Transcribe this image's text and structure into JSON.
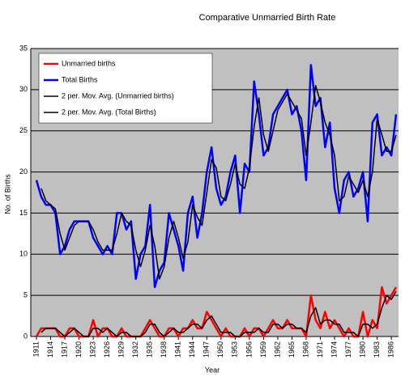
{
  "chart_data": {
    "type": "line",
    "title": "Comparative Unmarried Birth Rate",
    "x_label": "Year",
    "y_label": "No. of Births",
    "x": [
      1911,
      1912,
      1913,
      1914,
      1915,
      1916,
      1917,
      1918,
      1919,
      1920,
      1921,
      1922,
      1923,
      1924,
      1925,
      1926,
      1927,
      1928,
      1929,
      1930,
      1931,
      1932,
      1933,
      1934,
      1935,
      1936,
      1937,
      1938,
      1939,
      1940,
      1941,
      1942,
      1943,
      1944,
      1945,
      1946,
      1947,
      1948,
      1949,
      1950,
      1951,
      1952,
      1953,
      1954,
      1955,
      1956,
      1957,
      1958,
      1959,
      1960,
      1961,
      1962,
      1963,
      1964,
      1965,
      1966,
      1967,
      1968,
      1969,
      1970,
      1971,
      1972,
      1973,
      1974,
      1975,
      1976,
      1977,
      1978,
      1979,
      1980,
      1981,
      1982,
      1983,
      1984,
      1985,
      1986,
      1987
    ],
    "xlim": [
      1911,
      1987
    ],
    "xticks": [
      1911,
      1914,
      1917,
      1920,
      1923,
      1926,
      1929,
      1932,
      1935,
      1938,
      1941,
      1944,
      1947,
      1950,
      1953,
      1956,
      1959,
      1962,
      1965,
      1968,
      1971,
      1974,
      1977,
      1980,
      1983,
      1986
    ],
    "ylim": [
      0,
      35
    ],
    "yticks": [
      0,
      5,
      10,
      15,
      20,
      25,
      30,
      35
    ],
    "grid": true,
    "legend": "upper-left",
    "background": "#c0c0c0",
    "series": [
      {
        "name": "Unmarried births",
        "color": "#ff0000",
        "width": 2.5,
        "values": [
          0,
          1,
          1,
          1,
          1,
          0,
          0,
          1,
          1,
          0,
          0,
          0,
          2,
          0,
          1,
          1,
          0,
          0,
          1,
          0,
          0,
          0,
          0,
          1,
          2,
          1,
          0,
          0,
          1,
          1,
          0,
          1,
          1,
          2,
          1,
          1,
          3,
          2,
          1,
          0,
          1,
          0,
          0,
          0,
          1,
          0,
          1,
          1,
          0,
          1,
          2,
          1,
          1,
          2,
          1,
          1,
          1,
          0,
          5,
          2,
          1,
          3,
          1,
          2,
          1,
          0,
          1,
          0,
          0,
          3,
          0,
          2,
          1,
          6,
          4,
          5,
          6
        ]
      },
      {
        "name": "Total Births",
        "color": "#0000ff",
        "width": 2.5,
        "values": [
          19,
          17,
          16,
          16,
          15,
          10,
          11,
          13,
          14,
          14,
          14,
          14,
          12,
          11,
          10,
          11,
          10,
          15,
          15,
          13,
          14,
          7,
          10,
          11,
          16,
          6,
          8,
          9,
          15,
          13,
          11,
          8,
          15,
          17,
          12,
          15,
          20,
          23,
          18,
          16,
          17,
          20,
          22,
          15,
          21,
          20,
          31,
          27,
          22,
          23,
          27,
          28,
          29,
          30,
          27,
          28,
          25,
          19,
          33,
          28,
          29,
          23,
          26,
          18,
          15,
          19,
          20,
          17,
          18,
          20,
          14,
          26,
          27,
          22,
          23,
          22,
          27
        ]
      },
      {
        "name": "2 per. Mov. Avg. (Unmarried births)",
        "color": "#000000",
        "width": 1.5,
        "values": [
          null,
          0.5,
          1,
          1,
          1,
          0.5,
          0,
          0.5,
          1,
          0.5,
          0,
          0,
          1,
          1,
          0.5,
          1,
          0.5,
          0,
          0.5,
          0.5,
          0,
          0,
          0,
          0.5,
          1.5,
          1.5,
          0.5,
          0,
          0.5,
          1,
          0.5,
          0.5,
          1,
          1.5,
          1.5,
          1,
          2,
          2.5,
          1.5,
          0.5,
          0.5,
          0.5,
          0,
          0,
          0.5,
          0.5,
          0.5,
          1,
          0.5,
          0.5,
          1.5,
          1.5,
          1,
          1.5,
          1.5,
          1,
          1,
          0.5,
          2.5,
          3.5,
          1.5,
          2,
          2,
          1.5,
          1.5,
          0.5,
          0.5,
          0.5,
          0,
          1.5,
          1.5,
          1,
          1.5,
          3.5,
          5,
          4.5,
          5.5
        ]
      },
      {
        "name": "2 per. Mov. Avg. (Total Births)",
        "color": "#000000",
        "width": 1.5,
        "values": [
          null,
          18,
          16.5,
          16,
          15.5,
          12.5,
          10.5,
          12,
          13.5,
          14,
          14,
          14,
          13,
          11.5,
          10.5,
          10.5,
          10.5,
          12.5,
          15,
          14,
          13.5,
          10.5,
          8.5,
          10.5,
          13.5,
          11,
          7,
          8.5,
          12,
          14,
          12,
          9.5,
          11.5,
          16,
          14.5,
          13.5,
          17.5,
          21.5,
          20.5,
          17,
          16.5,
          18.5,
          21,
          18.5,
          18,
          20.5,
          25.5,
          29,
          24.5,
          22.5,
          25,
          27.5,
          28.5,
          29.5,
          28.5,
          27.5,
          26.5,
          22,
          26,
          30.5,
          28.5,
          26,
          24.5,
          22,
          16.5,
          17,
          19.5,
          18.5,
          17.5,
          19,
          17,
          20,
          26.5,
          24.5,
          22.5,
          22.5,
          24.5
        ]
      }
    ]
  }
}
